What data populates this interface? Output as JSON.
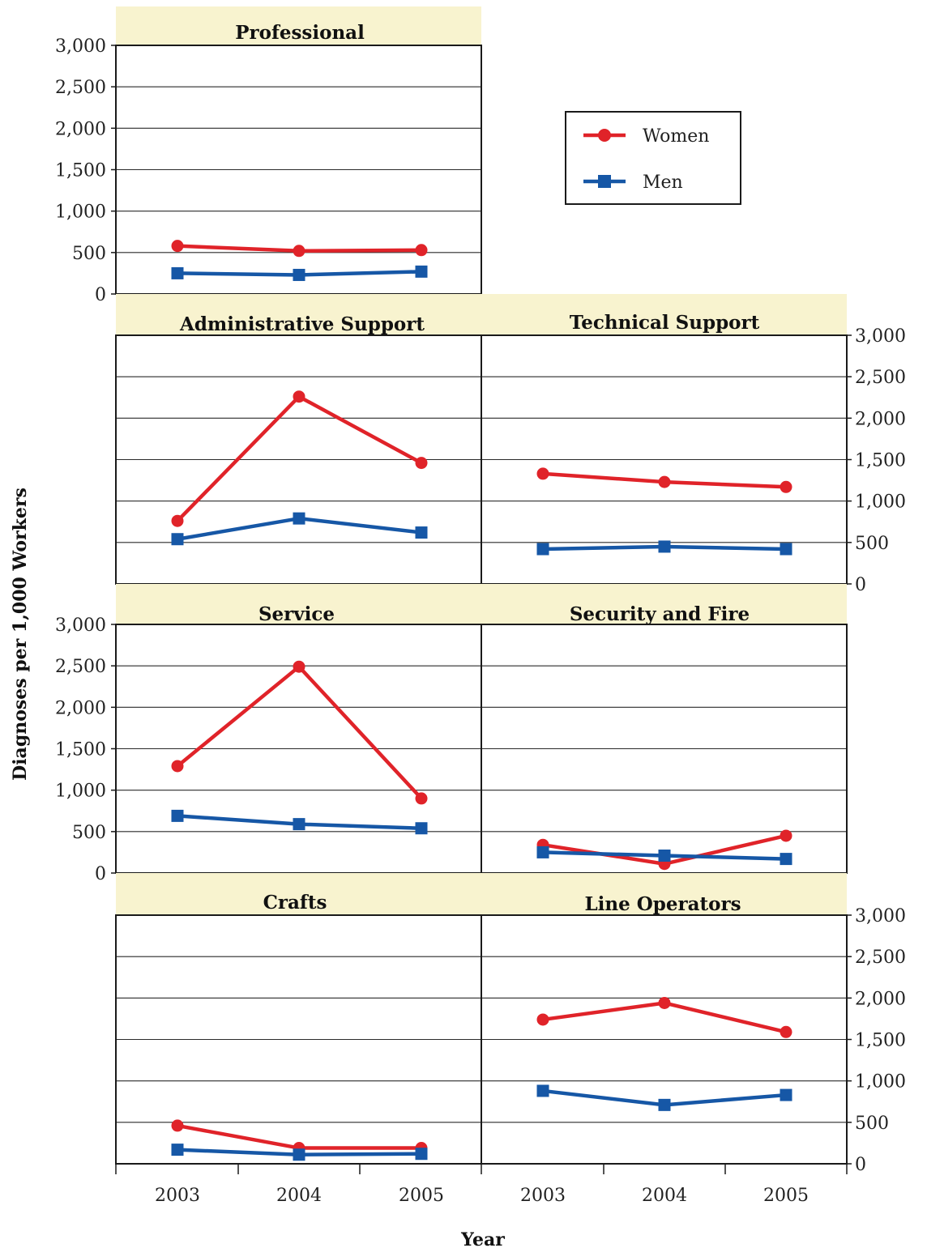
{
  "chart_data": {
    "type": "line",
    "x": [
      "2003",
      "2004",
      "2005"
    ],
    "xlabel": "Year",
    "ylabel": "Diagnoses per 1,000 Workers",
    "ylim": [
      0,
      3000
    ],
    "yticks": [
      "0",
      "500",
      "1,000",
      "1,500",
      "2,000",
      "2,500",
      "3,000"
    ],
    "legend": {
      "position": "top-right",
      "entries": [
        {
          "label": "Women",
          "color": "#e02329",
          "marker": "circle"
        },
        {
          "label": "Men",
          "color": "#1657a6",
          "marker": "square"
        }
      ]
    },
    "panels": [
      {
        "title": "Professional",
        "series": [
          {
            "name": "Women",
            "values": [
              580,
              520,
              530
            ]
          },
          {
            "name": "Men",
            "values": [
              250,
              230,
              270
            ]
          }
        ]
      },
      {
        "title": "Administrative Support",
        "series": [
          {
            "name": "Women",
            "values": [
              760,
              2260,
              1460
            ]
          },
          {
            "name": "Men",
            "values": [
              540,
              790,
              620
            ]
          }
        ]
      },
      {
        "title": "Technical Support",
        "series": [
          {
            "name": "Women",
            "values": [
              1330,
              1230,
              1170
            ]
          },
          {
            "name": "Men",
            "values": [
              420,
              450,
              420
            ]
          }
        ]
      },
      {
        "title": "Service",
        "series": [
          {
            "name": "Women",
            "values": [
              1290,
              2490,
              900
            ]
          },
          {
            "name": "Men",
            "values": [
              690,
              590,
              540
            ]
          }
        ]
      },
      {
        "title": "Security and Fire",
        "series": [
          {
            "name": "Women",
            "values": [
              340,
              110,
              450
            ]
          },
          {
            "name": "Men",
            "values": [
              250,
              210,
              170
            ]
          }
        ]
      },
      {
        "title": "Crafts",
        "series": [
          {
            "name": "Women",
            "values": [
              460,
              190,
              190
            ]
          },
          {
            "name": "Men",
            "values": [
              170,
              110,
              120
            ]
          }
        ]
      },
      {
        "title": "Line Operators",
        "series": [
          {
            "name": "Women",
            "values": [
              1740,
              1940,
              1590
            ]
          },
          {
            "name": "Men",
            "values": [
              880,
              710,
              830
            ]
          }
        ]
      }
    ]
  }
}
